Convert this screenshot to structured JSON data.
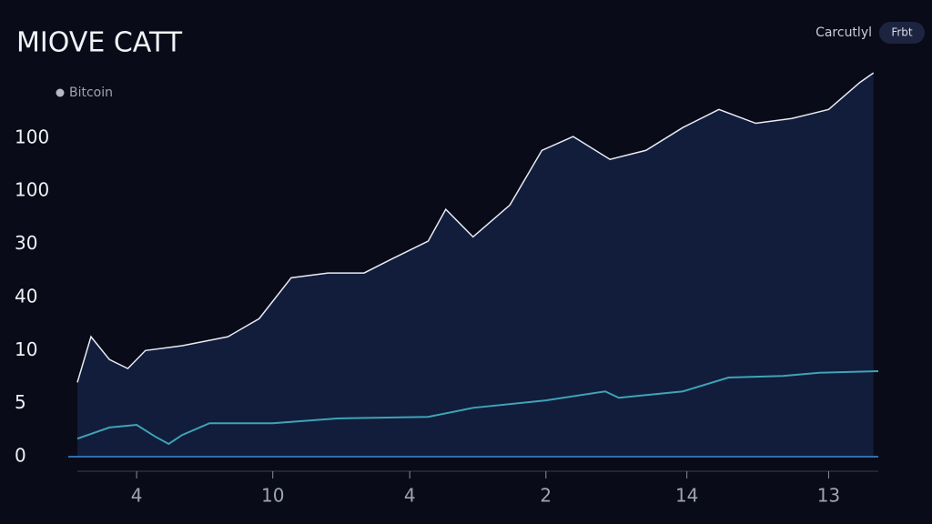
{
  "chart_data": {
    "type": "line",
    "title": "MIOVE CATT",
    "header_link": "Carcutlyl",
    "header_button": "Frbt",
    "series": [
      {
        "name": "Bitcoin",
        "color": "#e8ecf4",
        "legend_color": "#b8b8c4",
        "fill": "#111d3a",
        "x": [
          0,
          1.7,
          4.0,
          6.3,
          8.5,
          13.1,
          18.8,
          22.7,
          26.7,
          31.3,
          35.8,
          39.2,
          43.8,
          46.0,
          49.4,
          54.0,
          58.0,
          61.9,
          66.5,
          71.0,
          75.6,
          80.1,
          84.7,
          89.2,
          93.8,
          97.7,
          99.4
        ],
        "values": [
          1.4,
          2.26,
          1.83,
          1.66,
          2.0,
          2.09,
          2.26,
          2.6,
          3.37,
          3.46,
          3.46,
          3.72,
          4.06,
          4.66,
          4.14,
          4.74,
          5.77,
          6.03,
          5.6,
          5.77,
          6.2,
          6.54,
          6.28,
          6.37,
          6.54,
          7.05,
          7.23
        ]
      },
      {
        "color": "#3fa3b8",
        "x": [
          0,
          4.0,
          7.4,
          9.7,
          11.4,
          13.1,
          16.5,
          24.4,
          32.4,
          43.8,
          49.4,
          58.5,
          65.9,
          67.6,
          75.6,
          81.3,
          88.1,
          92.6,
          100
        ],
        "values": [
          0.34,
          0.55,
          0.6,
          0.38,
          0.24,
          0.41,
          0.63,
          0.63,
          0.72,
          0.75,
          0.92,
          1.06,
          1.23,
          1.11,
          1.23,
          1.49,
          1.52,
          1.58,
          1.61
        ]
      }
    ],
    "xlim": [
      0,
      100
    ],
    "xticks": [
      {
        "value": 7.4,
        "label": "4"
      },
      {
        "value": 24.4,
        "label": "10"
      },
      {
        "value": 41.5,
        "label": "4"
      },
      {
        "value": 58.5,
        "label": "2"
      },
      {
        "value": 76.1,
        "label": "14"
      },
      {
        "value": 93.8,
        "label": "13"
      }
    ],
    "ylim": [
      0,
      7.3
    ],
    "yticks": [
      0,
      {
        "value": 1,
        "label": "5"
      },
      {
        "value": 2,
        "label": "10"
      },
      {
        "value": 3,
        "label": "40"
      },
      {
        "value": 4,
        "label": "30"
      },
      {
        "value": 5,
        "label": "100"
      },
      {
        "value": 6,
        "label": "100"
      }
    ],
    "baseline_color": "#2f6fb0"
  }
}
